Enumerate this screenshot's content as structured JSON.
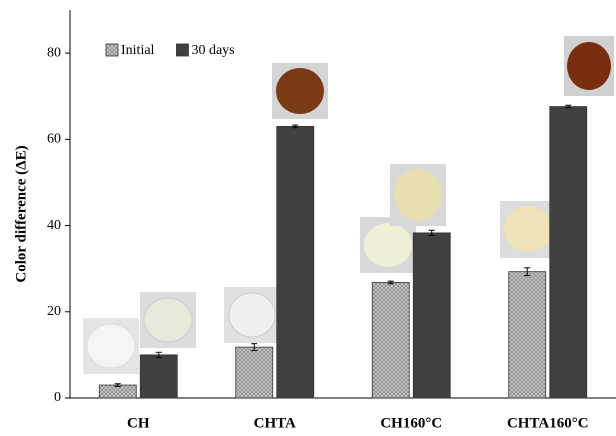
{
  "chart_data": {
    "type": "bar",
    "y_label": "Color difference (ΔE)",
    "categories": [
      "CH",
      "CHTA",
      "CH160°C",
      "CHTA160°C"
    ],
    "series": [
      {
        "name": "Initial",
        "color": "#c8c8c8",
        "values": [
          3.0,
          11.8,
          26.8,
          29.3
        ],
        "errors": [
          0.3,
          0.8,
          0.3,
          0.9
        ]
      },
      {
        "name": "30 days",
        "color": "#404040",
        "values": [
          10.0,
          63.0,
          38.3,
          67.6
        ],
        "errors": [
          0.6,
          0.3,
          0.6,
          0.3
        ]
      }
    ],
    "ylim": [
      0,
      90
    ],
    "yticks": [
      0,
      20,
      40,
      60,
      80
    ],
    "legend": "upper left"
  }
}
